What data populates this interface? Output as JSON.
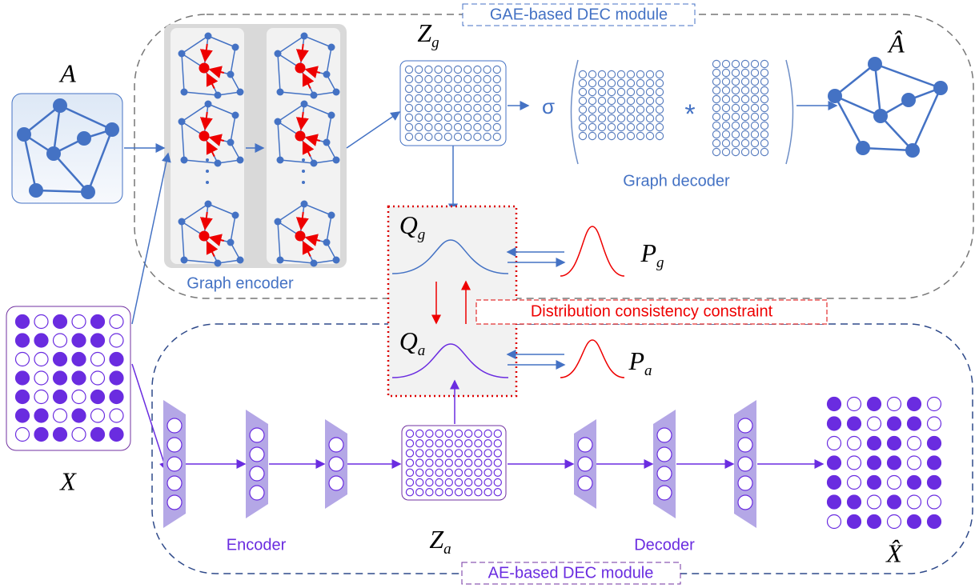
{
  "gae_module": {
    "label": "GAE-based DEC module"
  },
  "ae_module": {
    "label": "AE-based DEC module"
  },
  "input_adjacency": "A",
  "input_features": "X",
  "graph_encoder": {
    "label": "Graph encoder"
  },
  "graph_decoder": {
    "label": "Graph decoder",
    "activation": "σ",
    "operator": "*"
  },
  "latent_graph": {
    "base": "Z",
    "sub": "g"
  },
  "latent_ae": {
    "base": "Z",
    "sub": "a"
  },
  "reconstructed_adjacency": "Â",
  "reconstructed_features": "X̂",
  "q_graph": {
    "base": "Q",
    "sub": "g"
  },
  "q_ae": {
    "base": "Q",
    "sub": "a"
  },
  "p_graph": {
    "base": "P",
    "sub": "g"
  },
  "p_ae": {
    "base": "P",
    "sub": "a"
  },
  "constraint": {
    "label": "Distribution consistency constraint"
  },
  "encoder": {
    "label": "Encoder"
  },
  "decoder": {
    "label": "Decoder"
  }
}
